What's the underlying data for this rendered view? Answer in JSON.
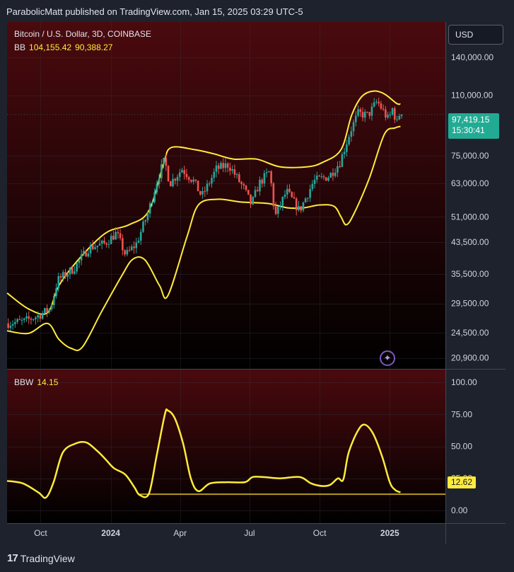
{
  "header": {
    "published_line": "ParabolicMatt published on TradingView.com, Jan 15, 2025 03:29 UTC-5"
  },
  "legend": {
    "symbol": "Bitcoin / U.S. Dollar, 3D, COINBASE",
    "bb_label": "BB",
    "bb_upper": "104,155.42",
    "bb_lower": "90,388.27",
    "bbw_label": "BBW",
    "bbw_value": "14.15"
  },
  "currency_button": "USD",
  "last_price": {
    "price": "97,419.15",
    "countdown": "15:30:41"
  },
  "bbw_badge": "12.62",
  "brand": "TradingView",
  "colors": {
    "up": "#26a69a",
    "down": "#ef5350",
    "band": "#ffeb3b",
    "bbw_line": "#ffeb3b",
    "grid": "#363a45",
    "bg_top": "#4a0a0e",
    "bg_bottom": "#000000"
  },
  "chart_data": [
    {
      "type": "candlestick",
      "title": "Bitcoin / U.S. Dollar, 3D, COINBASE",
      "y_scale": "log",
      "y_ticks": [
        "140,000.00",
        "110,000.00",
        "75,000.00",
        "63,000.00",
        "51,000.00",
        "43,500.00",
        "35,500.00",
        "29,500.00",
        "24,500.00",
        "20,900.00"
      ],
      "y_tick_values": [
        140000,
        110000,
        75000,
        63000,
        51000,
        43500,
        35500,
        29500,
        24500,
        20900
      ],
      "ylim": [
        19500,
        175000
      ],
      "x_ticks": [
        "Oct",
        "2024",
        "Apr",
        "Jul",
        "Oct",
        "2025"
      ],
      "x_tick_dates": [
        "2023-10-01",
        "2024-01-01",
        "2024-04-01",
        "2024-07-01",
        "2024-10-01",
        "2025-01-01"
      ],
      "xlim": [
        "2023-08-18",
        "2025-03-15"
      ],
      "last_price": 97419.15,
      "price_path": [
        [
          "2023-08-18",
          26000
        ],
        [
          "2023-09-10",
          26300
        ],
        [
          "2023-09-28",
          27200
        ],
        [
          "2023-10-15",
          28500
        ],
        [
          "2023-10-25",
          34200
        ],
        [
          "2023-11-15",
          36800
        ],
        [
          "2023-12-05",
          42000
        ],
        [
          "2023-12-25",
          43000
        ],
        [
          "2024-01-10",
          46000
        ],
        [
          "2024-01-22",
          40000
        ],
        [
          "2024-02-05",
          43000
        ],
        [
          "2024-02-20",
          52000
        ],
        [
          "2024-03-05",
          66000
        ],
        [
          "2024-03-13",
          73000
        ],
        [
          "2024-03-20",
          63000
        ],
        [
          "2024-04-05",
          69000
        ],
        [
          "2024-04-20",
          64000
        ],
        [
          "2024-05-01",
          58000
        ],
        [
          "2024-05-20",
          69000
        ],
        [
          "2024-06-05",
          71000
        ],
        [
          "2024-06-25",
          61000
        ],
        [
          "2024-07-05",
          55000
        ],
        [
          "2024-07-15",
          63000
        ],
        [
          "2024-07-29",
          68000
        ],
        [
          "2024-08-05",
          51000
        ],
        [
          "2024-08-20",
          60000
        ],
        [
          "2024-09-06",
          53000
        ],
        [
          "2024-09-25",
          64000
        ],
        [
          "2024-10-15",
          66000
        ],
        [
          "2024-10-29",
          72000
        ],
        [
          "2024-11-12",
          88000
        ],
        [
          "2024-11-22",
          98000
        ],
        [
          "2024-12-05",
          97000
        ],
        [
          "2024-12-17",
          106000
        ],
        [
          "2025-01-01",
          94000
        ],
        [
          "2025-01-06",
          101000
        ],
        [
          "2025-01-13",
          91000
        ],
        [
          "2025-01-15",
          97419
        ]
      ],
      "bb_upper": [
        [
          "2023-08-18",
          31500
        ],
        [
          "2023-09-15",
          28500
        ],
        [
          "2023-10-10",
          27800
        ],
        [
          "2023-10-25",
          33000
        ],
        [
          "2023-11-20",
          39000
        ],
        [
          "2023-12-25",
          46000
        ],
        [
          "2024-01-25",
          48500
        ],
        [
          "2024-02-20",
          53000
        ],
        [
          "2024-03-10",
          71000
        ],
        [
          "2024-03-20",
          79000
        ],
        [
          "2024-04-20",
          78000
        ],
        [
          "2024-05-15",
          76000
        ],
        [
          "2024-06-10",
          73500
        ],
        [
          "2024-07-10",
          73500
        ],
        [
          "2024-08-10",
          70000
        ],
        [
          "2024-09-15",
          70000
        ],
        [
          "2024-10-05",
          72000
        ],
        [
          "2024-10-29",
          78000
        ],
        [
          "2024-11-12",
          97000
        ],
        [
          "2024-11-25",
          109000
        ],
        [
          "2024-12-10",
          113000
        ],
        [
          "2024-12-25",
          111000
        ],
        [
          "2025-01-10",
          104500
        ],
        [
          "2025-01-15",
          104155
        ]
      ],
      "bb_lower": [
        [
          "2023-08-18",
          24800
        ],
        [
          "2023-09-15",
          24400
        ],
        [
          "2023-10-10",
          26000
        ],
        [
          "2023-10-25",
          23500
        ],
        [
          "2023-11-10",
          22200
        ],
        [
          "2023-11-25",
          22400
        ],
        [
          "2023-12-20",
          28000
        ],
        [
          "2024-01-15",
          35000
        ],
        [
          "2024-01-30",
          39000
        ],
        [
          "2024-02-15",
          38800
        ],
        [
          "2024-03-05",
          33000
        ],
        [
          "2024-03-16",
          31000
        ],
        [
          "2024-04-10",
          45000
        ],
        [
          "2024-04-25",
          55000
        ],
        [
          "2024-05-20",
          57000
        ],
        [
          "2024-06-20",
          56000
        ],
        [
          "2024-07-25",
          55500
        ],
        [
          "2024-08-20",
          54000
        ],
        [
          "2024-09-10",
          54000
        ],
        [
          "2024-10-01",
          55000
        ],
        [
          "2024-10-20",
          54500
        ],
        [
          "2024-10-29",
          51000
        ],
        [
          "2024-11-05",
          48500
        ],
        [
          "2024-11-15",
          52000
        ],
        [
          "2024-12-05",
          65000
        ],
        [
          "2024-12-25",
          86000
        ],
        [
          "2025-01-08",
          89500
        ],
        [
          "2025-01-15",
          90388
        ]
      ]
    },
    {
      "type": "line",
      "title": "BBW",
      "y_ticks": [
        "100.00",
        "75.00",
        "50.00",
        "25.00",
        "0.00"
      ],
      "y_tick_values": [
        100,
        75,
        50,
        25,
        0
      ],
      "ylim": [
        -10,
        110
      ],
      "xlim": [
        "2023-08-18",
        "2025-03-15"
      ],
      "reference_level": 12.62,
      "series": [
        {
          "values": [
            [
              "2023-08-18",
              23
            ],
            [
              "2023-09-08",
              21
            ],
            [
              "2023-09-28",
              14
            ],
            [
              "2023-10-08",
              10
            ],
            [
              "2023-10-18",
              22
            ],
            [
              "2023-10-30",
              45
            ],
            [
              "2023-11-15",
              52
            ],
            [
              "2023-11-30",
              53
            ],
            [
              "2023-12-15",
              46
            ],
            [
              "2023-12-25",
              40
            ],
            [
              "2024-01-05",
              33
            ],
            [
              "2024-01-20",
              28
            ],
            [
              "2024-02-01",
              18
            ],
            [
              "2024-02-08",
              12
            ],
            [
              "2024-02-20",
              13
            ],
            [
              "2024-03-01",
              42
            ],
            [
              "2024-03-12",
              75
            ],
            [
              "2024-03-16",
              78
            ],
            [
              "2024-03-25",
              72
            ],
            [
              "2024-04-05",
              52
            ],
            [
              "2024-04-15",
              25
            ],
            [
              "2024-04-25",
              15
            ],
            [
              "2024-05-10",
              21
            ],
            [
              "2024-06-01",
              22
            ],
            [
              "2024-06-25",
              22
            ],
            [
              "2024-07-05",
              26
            ],
            [
              "2024-07-20",
              26
            ],
            [
              "2024-08-10",
              25
            ],
            [
              "2024-09-05",
              26
            ],
            [
              "2024-09-20",
              21
            ],
            [
              "2024-10-05",
              19
            ],
            [
              "2024-10-15",
              20
            ],
            [
              "2024-10-25",
              25
            ],
            [
              "2024-11-01",
              24
            ],
            [
              "2024-11-08",
              45
            ],
            [
              "2024-11-20",
              62
            ],
            [
              "2024-11-29",
              67
            ],
            [
              "2024-12-10",
              60
            ],
            [
              "2024-12-22",
              42
            ],
            [
              "2025-01-01",
              22
            ],
            [
              "2025-01-08",
              16
            ],
            [
              "2025-01-15",
              14
            ]
          ]
        }
      ]
    }
  ]
}
